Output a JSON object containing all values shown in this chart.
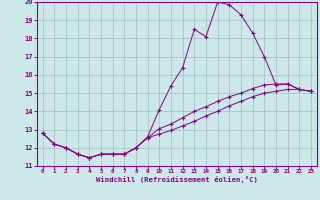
{
  "xlabel": "Windchill (Refroidissement éolien,°C)",
  "bg_color": "#cce8e8",
  "grid_color": "#a0bfbf",
  "line_color": "#880088",
  "xlim": [
    -0.5,
    23.5
  ],
  "ylim": [
    11,
    20
  ],
  "xticks": [
    0,
    1,
    2,
    3,
    4,
    5,
    6,
    7,
    8,
    9,
    10,
    11,
    12,
    13,
    14,
    15,
    16,
    17,
    18,
    19,
    20,
    21,
    22,
    23
  ],
  "yticks": [
    11,
    12,
    13,
    14,
    15,
    16,
    17,
    18,
    19,
    20
  ],
  "line1_x": [
    0,
    1,
    2,
    3,
    4,
    5,
    6,
    7,
    8,
    9,
    10,
    11,
    12,
    13,
    14,
    15,
    16,
    17,
    18,
    19,
    20,
    21,
    22,
    23
  ],
  "line1_y": [
    12.8,
    12.2,
    12.0,
    11.65,
    11.45,
    11.65,
    11.65,
    11.65,
    12.0,
    12.6,
    14.1,
    15.4,
    16.4,
    18.5,
    18.1,
    20.0,
    19.85,
    19.3,
    18.3,
    17.0,
    15.45,
    15.5,
    15.2,
    15.1
  ],
  "line2_x": [
    0,
    1,
    2,
    3,
    4,
    5,
    6,
    7,
    8,
    9,
    10,
    11,
    12,
    13,
    14,
    15,
    16,
    17,
    18,
    19,
    20,
    21,
    22,
    23
  ],
  "line2_y": [
    12.8,
    12.2,
    12.0,
    11.65,
    11.45,
    11.65,
    11.65,
    11.65,
    12.0,
    12.55,
    13.05,
    13.3,
    13.65,
    14.0,
    14.25,
    14.55,
    14.8,
    15.0,
    15.25,
    15.45,
    15.5,
    15.5,
    15.2,
    15.1
  ],
  "line3_x": [
    0,
    1,
    2,
    3,
    4,
    5,
    6,
    7,
    8,
    9,
    10,
    11,
    12,
    13,
    14,
    15,
    16,
    17,
    18,
    19,
    20,
    21,
    22,
    23
  ],
  "line3_y": [
    12.8,
    12.2,
    12.0,
    11.65,
    11.45,
    11.65,
    11.65,
    11.65,
    12.0,
    12.55,
    12.75,
    12.95,
    13.2,
    13.45,
    13.75,
    14.0,
    14.3,
    14.55,
    14.8,
    15.0,
    15.1,
    15.2,
    15.2,
    15.1
  ]
}
